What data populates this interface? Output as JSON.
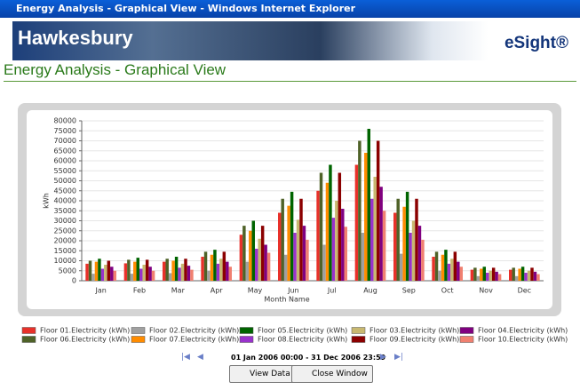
{
  "window": {
    "title": "Energy Analysis - Graphical View - Windows Internet Explorer"
  },
  "header": {
    "brand": "Hawkesbury",
    "product": "eSight®"
  },
  "page_title": "Energy Analysis - Graphical View",
  "chart_data": {
    "type": "bar",
    "x_label": "Month Name",
    "y_label": "kWh",
    "categories": [
      "Jan",
      "Feb",
      "Mar",
      "Apr",
      "May",
      "Jun",
      "Jul",
      "Aug",
      "Sep",
      "Oct",
      "Nov",
      "Dec"
    ],
    "ylim": [
      0,
      80000
    ],
    "yticks": [
      0,
      5000,
      10000,
      15000,
      20000,
      25000,
      30000,
      35000,
      40000,
      45000,
      50000,
      55000,
      60000,
      65000,
      70000,
      75000,
      80000
    ],
    "grid": true,
    "series": [
      {
        "name": "Floor 01.Electricity (kWh)",
        "color": "#e8312a",
        "values": [
          8500,
          8700,
          9500,
          12000,
          23000,
          34000,
          45000,
          58000,
          34000,
          12000,
          5500,
          5500
        ]
      },
      {
        "name": "Floor 06.Electricity (kWh)",
        "color": "#4f6228",
        "values": [
          10000,
          10500,
          11000,
          14500,
          27500,
          41000,
          54000,
          70000,
          41000,
          14500,
          6500,
          6500
        ]
      },
      {
        "name": "Floor 02.Electricity (kWh)",
        "color": "#a0a0a0",
        "values": [
          3500,
          3500,
          3800,
          5000,
          9500,
          13000,
          18000,
          24000,
          13500,
          5000,
          2300,
          2300
        ]
      },
      {
        "name": "Floor 07.Electricity (kWh)",
        "color": "#ff8c00",
        "values": [
          9500,
          9500,
          10000,
          13000,
          25000,
          37500,
          49000,
          64000,
          37000,
          13000,
          6000,
          6000
        ]
      },
      {
        "name": "Floor 05.Electricity (kWh)",
        "color": "#006400",
        "values": [
          11000,
          11500,
          12000,
          15500,
          30000,
          44500,
          58000,
          76000,
          44500,
          15500,
          7000,
          7000
        ]
      },
      {
        "name": "Floor 08.Electricity (kWh)",
        "color": "#9932cc",
        "values": [
          6000,
          6000,
          6500,
          8500,
          16000,
          24000,
          31500,
          41000,
          24000,
          8500,
          4000,
          4000
        ]
      },
      {
        "name": "Floor 03.Electricity (kWh)",
        "color": "#c8b870",
        "values": [
          8000,
          8000,
          8500,
          11000,
          21000,
          30500,
          40000,
          52000,
          30000,
          11000,
          5000,
          5000
        ]
      },
      {
        "name": "Floor 09.Electricity (kWh)",
        "color": "#8b0000",
        "values": [
          10000,
          10500,
          11000,
          14500,
          27500,
          41000,
          54000,
          70000,
          41000,
          14500,
          6500,
          6500
        ]
      },
      {
        "name": "Floor 04.Electricity (kWh)",
        "color": "#800080",
        "values": [
          7000,
          7000,
          7500,
          9500,
          18000,
          27500,
          36000,
          47000,
          27500,
          9500,
          4500,
          4500
        ]
      },
      {
        "name": "Floor 10.Electricity (kWh)",
        "color": "#f08070",
        "values": [
          5000,
          5000,
          5500,
          7000,
          14000,
          20500,
          27000,
          35000,
          20500,
          7000,
          3300,
          3300
        ]
      }
    ]
  },
  "footer": {
    "date_range": "01 Jan 2006 00:00 - 31 Dec 2006 23:59",
    "buttons": [
      "View Data",
      "Close Window"
    ]
  }
}
